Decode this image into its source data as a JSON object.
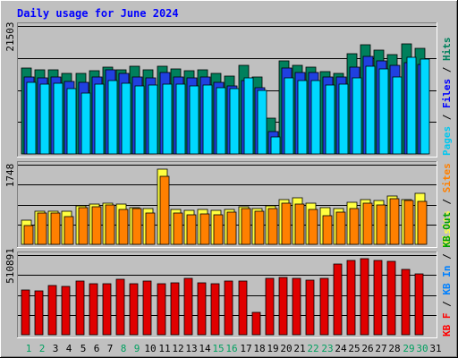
{
  "chart_data": {
    "type": "bar",
    "title": "Daily usage for June 2024",
    "days": [
      "1",
      "2",
      "3",
      "4",
      "5",
      "6",
      "7",
      "8",
      "9",
      "10",
      "11",
      "12",
      "13",
      "14",
      "15",
      "16",
      "17",
      "18",
      "19",
      "20",
      "21",
      "22",
      "23",
      "24",
      "25",
      "26",
      "27",
      "28",
      "29",
      "30",
      "31"
    ],
    "weekend_days": [
      "1",
      "2",
      "8",
      "9",
      "15",
      "16",
      "22",
      "23",
      "29",
      "30"
    ],
    "panels": [
      {
        "id": "hits",
        "max_label": "21503",
        "ymax": 21503,
        "legend": [
          {
            "text": "Pages",
            "color": "#00c8f0"
          },
          {
            "text": " / ",
            "color": "#000000"
          },
          {
            "text": "Files",
            "color": "#0000ff"
          },
          {
            "text": " / ",
            "color": "#000000"
          },
          {
            "text": "Hits",
            "color": "#00805c"
          }
        ],
        "series": [
          {
            "name": "Hits",
            "color": "#00805c",
            "values": [
              14500,
              14200,
              14100,
              13500,
              13500,
              14000,
              14600,
              14200,
              14700,
              14200,
              14800,
              14300,
              14000,
              14200,
              13500,
              13100,
              14900,
              12900,
              6000,
              15600,
              14900,
              14600,
              13800,
              13500,
              16900,
              18300,
              17500,
              16700,
              18500,
              17800,
              0
            ]
          },
          {
            "name": "Files",
            "color": "#2040e0",
            "values": [
              13000,
              12800,
              12900,
              12200,
              12000,
              13000,
              14100,
              13500,
              13000,
              12800,
              13700,
              13000,
              12800,
              12900,
              12000,
              11400,
              12400,
              11100,
              3800,
              14500,
              13700,
              13700,
              13000,
              12900,
              14600,
              16400,
              15600,
              14900,
              15300,
              15100,
              0
            ]
          },
          {
            "name": "Pages",
            "color": "#00d8ff",
            "values": [
              12000,
              11800,
              11900,
              11000,
              10300,
              11800,
              12300,
              11900,
              11500,
              11600,
              11800,
              11800,
              11500,
              11600,
              11100,
              11000,
              12800,
              10700,
              2800,
              12800,
              12300,
              12300,
              11600,
              11800,
              12800,
              14700,
              14300,
              13000,
              16200,
              15900,
              0
            ]
          }
        ]
      },
      {
        "id": "visits",
        "max_label": "1748",
        "ymax": 1748,
        "legend": [
          {
            "text": "Visits",
            "color": "#ffff40"
          },
          {
            "text": " / ",
            "color": "#000000"
          },
          {
            "text": "Sites",
            "color": "#ff8000"
          }
        ],
        "series": [
          {
            "name": "Visits",
            "color": "#ffff40",
            "values": [
              540,
              720,
              730,
              720,
              850,
              880,
              900,
              890,
              810,
              790,
              1650,
              760,
              750,
              760,
              740,
              760,
              830,
              780,
              850,
              980,
              1030,
              910,
              810,
              780,
              930,
              980,
              970,
              1060,
              990,
              1120,
              0
            ]
          },
          {
            "name": "Sites",
            "color": "#ff8000",
            "values": [
              410,
              680,
              680,
              600,
              810,
              830,
              860,
              760,
              780,
              680,
              1490,
              680,
              640,
              660,
              650,
              700,
              780,
              720,
              790,
              900,
              880,
              770,
              630,
              700,
              790,
              910,
              870,
              1000,
              960,
              940,
              0
            ]
          }
        ]
      },
      {
        "id": "kbytes",
        "max_label": "510891",
        "ymax": 510891,
        "legend": [
          {
            "text": "KB F",
            "color": "#ff0000"
          },
          {
            "text": " / ",
            "color": "#000000"
          },
          {
            "text": "KB In",
            "color": "#0080ff"
          },
          {
            "text": " / ",
            "color": "#000000"
          },
          {
            "text": "KB Out",
            "color": "#00a000"
          }
        ],
        "series": [
          {
            "name": "KB F",
            "color": "#e00000",
            "values": [
              285000,
              280000,
              315000,
              310000,
              345000,
              330000,
              325000,
              355000,
              330000,
              345000,
              325000,
              335000,
              360000,
              335000,
              330000,
              345000,
              345000,
              145000,
              360000,
              365000,
              360000,
              350000,
              360000,
              455000,
              475000,
              490000,
              475000,
              470000,
              420000,
              392000,
              0
            ]
          }
        ]
      }
    ]
  }
}
